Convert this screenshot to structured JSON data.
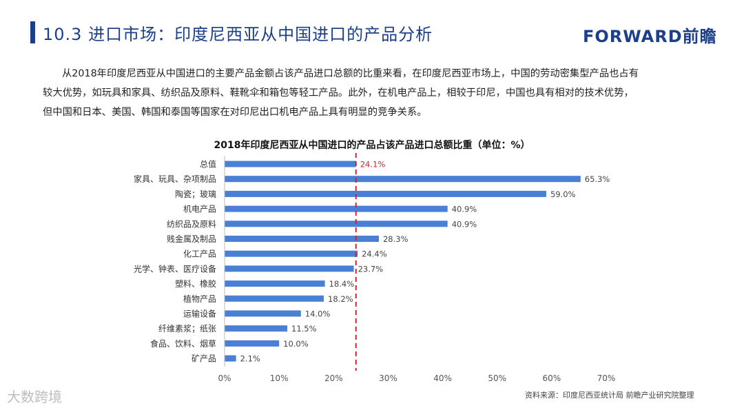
{
  "header": {
    "title": "10.3 进口市场：印度尼西亚从中国进口的产品分析",
    "brand": "FORWARD前瞻"
  },
  "body_text": [
    "从2018年印度尼西亚从中国进口的主要产品金额占该产品进口总额的比重来看，在印度尼西亚市场上，中国的劳动密集型产品也占有",
    "较大优势，如玩具和家具、纺织品及原料、鞋靴伞和箱包等轻工产品。此外，在机电产品上，相较于印尼，中国也具有相对的技术优势，",
    "但中国和日本、美国、韩国和泰国等国家在对印尼出口机电产品上具有明显的竞争关系。"
  ],
  "chart_data": {
    "type": "bar",
    "orientation": "horizontal",
    "title": "2018年印度尼西亚从中国进口的产品占该产品进口总额比重（单位：%）",
    "categories": [
      "总值",
      "家具、玩具、杂项制品",
      "陶瓷；玻璃",
      "机电产品",
      "纺织品及原料",
      "贱金属及制品",
      "化工产品",
      "光学、钟表、医疗设备",
      "塑料、橡胶",
      "植物产品",
      "运输设备",
      "纤维素浆；纸张",
      "食品、饮料、烟草",
      "矿产品"
    ],
    "values": [
      24.1,
      65.3,
      59.0,
      40.9,
      40.9,
      28.3,
      24.4,
      23.7,
      18.4,
      18.2,
      14.0,
      11.5,
      10.0,
      2.1
    ],
    "value_labels": [
      "24.1%",
      "65.3%",
      "59.0%",
      "40.9%",
      "40.9%",
      "28.3%",
      "24.4%",
      "23.7%",
      "18.4%",
      "18.2%",
      "14.0%",
      "11.5%",
      "10.0%",
      "2.1%"
    ],
    "xlim": [
      0,
      70
    ],
    "ticks": [
      "0%",
      "10%",
      "20%",
      "30%",
      "40%",
      "50%",
      "60%",
      "70%"
    ],
    "reference_line": 24.1,
    "grid": false,
    "colors": {
      "bar": "#4a7fd6",
      "reference": "#c9252c",
      "highlight_label": "#c9252c"
    }
  },
  "footer": {
    "source": "资料来源：印度尼西亚统计局  前瞻产业研究院整理",
    "watermark": "大数跨境"
  }
}
